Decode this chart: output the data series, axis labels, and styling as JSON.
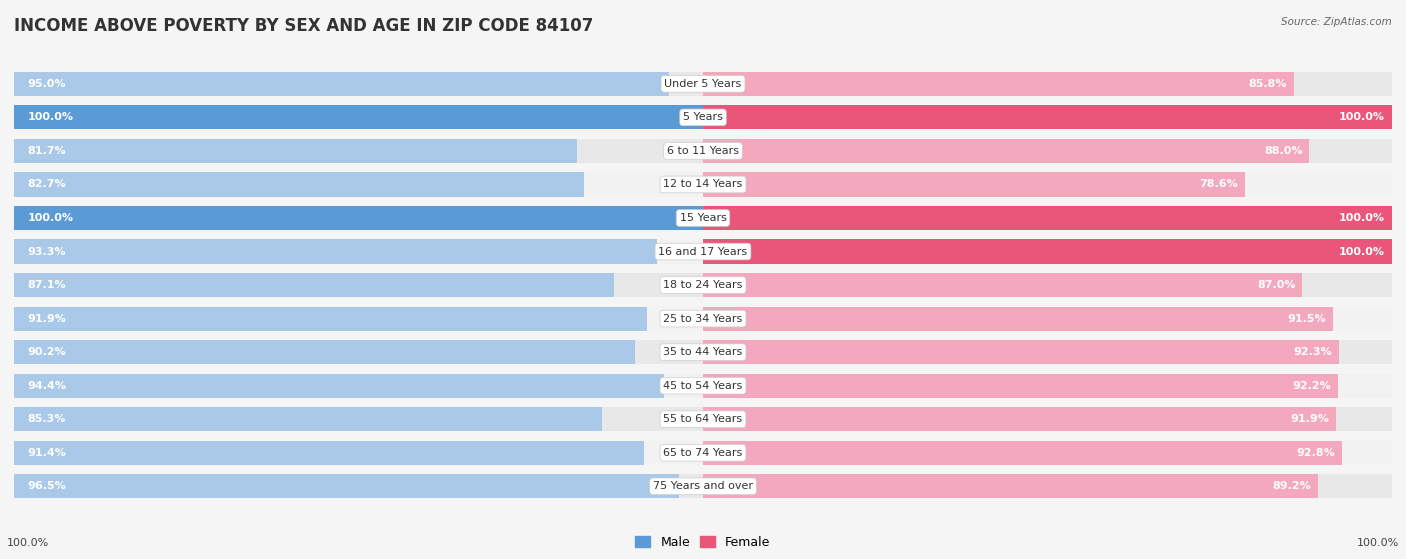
{
  "title": "INCOME ABOVE POVERTY BY SEX AND AGE IN ZIP CODE 84107",
  "source": "Source: ZipAtlas.com",
  "categories": [
    "Under 5 Years",
    "5 Years",
    "6 to 11 Years",
    "12 to 14 Years",
    "15 Years",
    "16 and 17 Years",
    "18 to 24 Years",
    "25 to 34 Years",
    "35 to 44 Years",
    "45 to 54 Years",
    "55 to 64 Years",
    "65 to 74 Years",
    "75 Years and over"
  ],
  "male_values": [
    95.0,
    100.0,
    81.7,
    82.7,
    100.0,
    93.3,
    87.1,
    91.9,
    90.2,
    94.4,
    85.3,
    91.4,
    96.5
  ],
  "female_values": [
    85.8,
    100.0,
    88.0,
    78.6,
    100.0,
    100.0,
    87.0,
    91.5,
    92.3,
    92.2,
    91.9,
    92.8,
    89.2
  ],
  "male_color_full": "#5b9bd5",
  "male_color_light": "#aac9e8",
  "female_color_full": "#e9567a",
  "female_color_light": "#f4a8be",
  "row_bg_color": "#e8e8e8",
  "row_alt_bg_color": "#f2f2f2",
  "background_color": "#f5f5f5",
  "label_bg_color": "#ffffff",
  "title_fontsize": 12,
  "label_fontsize": 8,
  "value_fontsize": 8,
  "legend_fontsize": 9,
  "footer_value": "100.0%"
}
